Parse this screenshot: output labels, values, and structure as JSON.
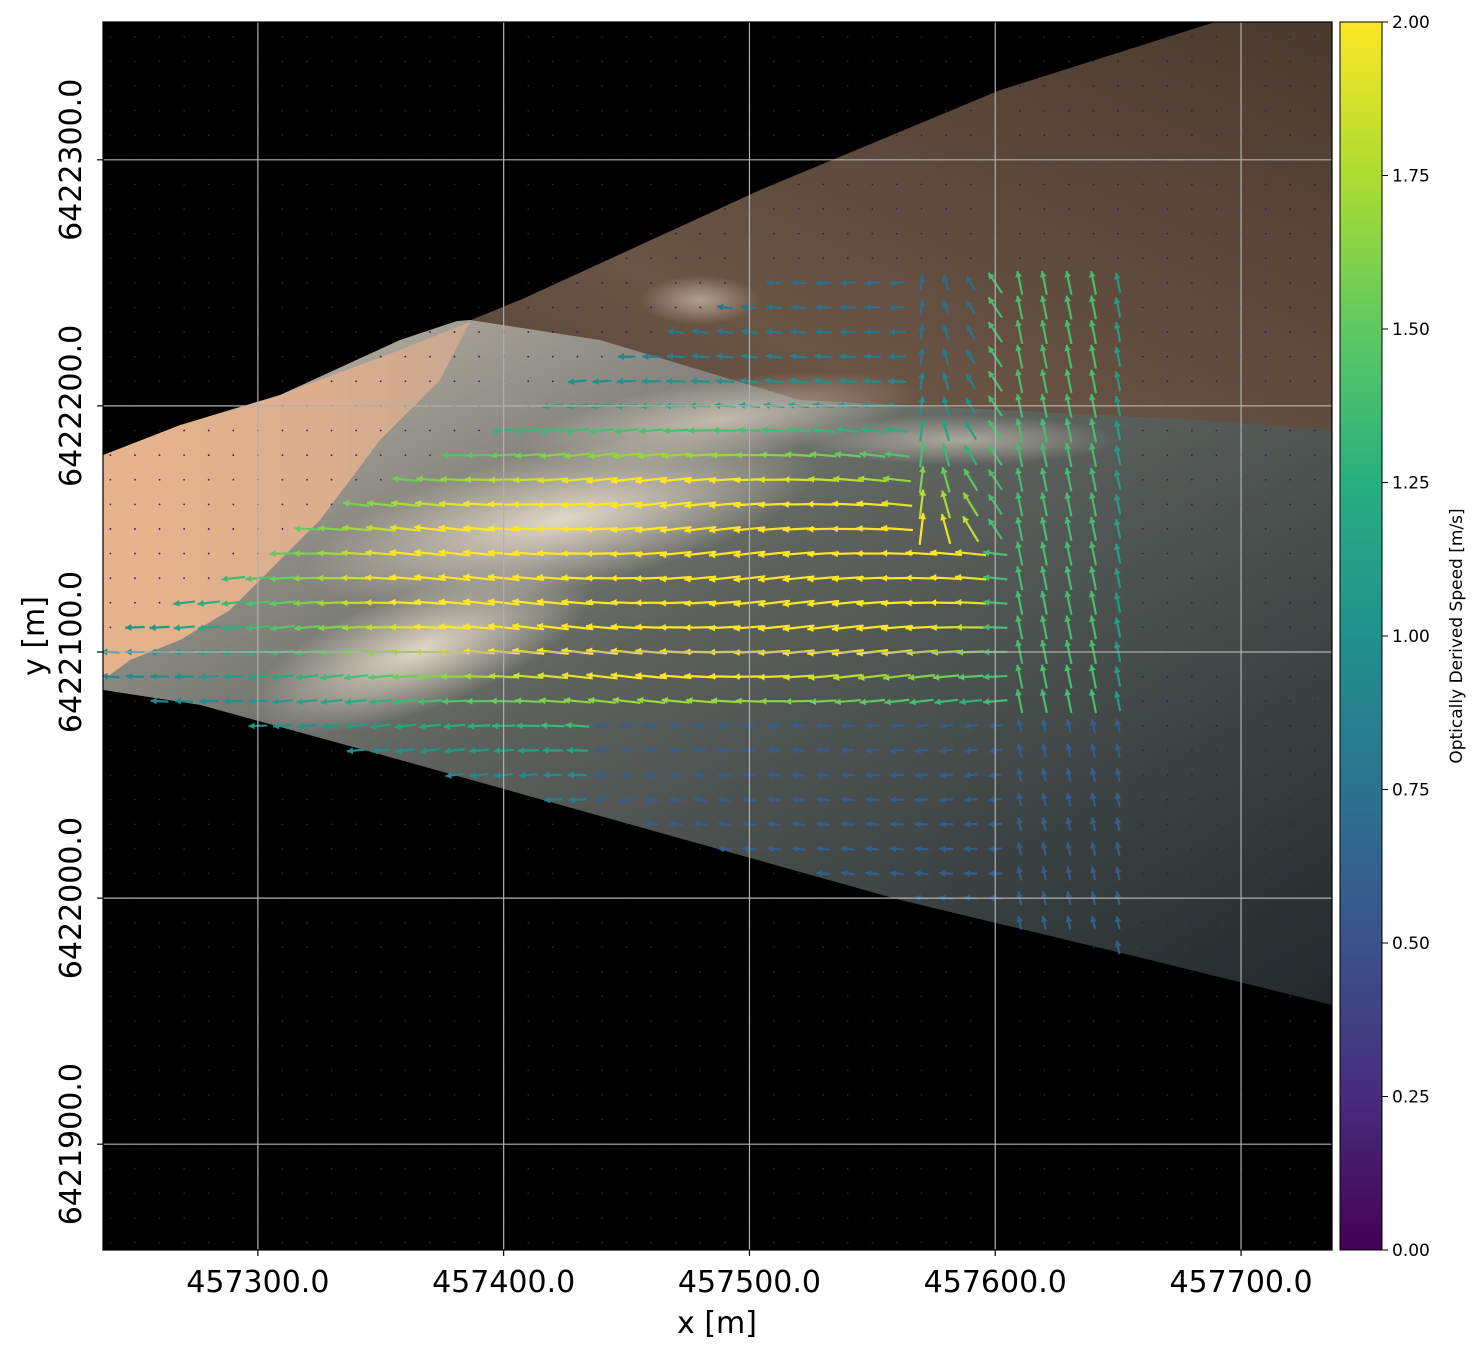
{
  "chart_data": {
    "type": "quiver",
    "xlabel": "x [m]",
    "ylabel": "y [m]",
    "xlim": [
      457237,
      457737
    ],
    "ylim": [
      6421857,
      6422356
    ],
    "x_ticks": [
      457300.0,
      457400.0,
      457500.0,
      457600.0,
      457700.0
    ],
    "x_tick_labels": [
      "457300.0",
      "457400.0",
      "457500.0",
      "457600.0",
      "457700.0"
    ],
    "y_ticks": [
      6421900.0,
      6422000.0,
      6422100.0,
      6422200.0,
      6422300.0
    ],
    "y_tick_labels": [
      "6421900.0",
      "6422000.0",
      "6422100.0",
      "6422200.0",
      "6422300.0"
    ],
    "grid": true,
    "background": "optical image (beach sand, shallow water, breaking waves, dark masked outside field of view)",
    "colorbar": {
      "label": "Optically Derived Speed [m/s]",
      "colormap": "viridis",
      "range": [
        0,
        2
      ],
      "ticks": [
        0.0,
        0.25,
        0.5,
        0.75,
        1.0,
        1.25,
        1.5,
        1.75,
        2.0
      ],
      "tick_labels": [
        "0.00",
        "0.25",
        "0.50",
        "0.75",
        "1.00",
        "1.25",
        "1.50",
        "1.75",
        "2.00"
      ]
    },
    "vector_field_summary": {
      "grid_spacing_m": 10,
      "dominant_direction": "westward (toward shore, slightly onshore/south-west)",
      "speed_range_m_s": [
        0.0,
        2.0
      ],
      "high_speed_zone": "surf zone between x 457400-457560, y 6422090-6422180 (speeds at or above 2 m/s)",
      "eddy_region": "around x 457560-457620, y 6422140-6422200 (rotating vectors)"
    }
  },
  "colors": {
    "grid": "#b0b0b0",
    "mask": "#000000",
    "sand": "#e2b48f",
    "water": "#2c3133"
  }
}
